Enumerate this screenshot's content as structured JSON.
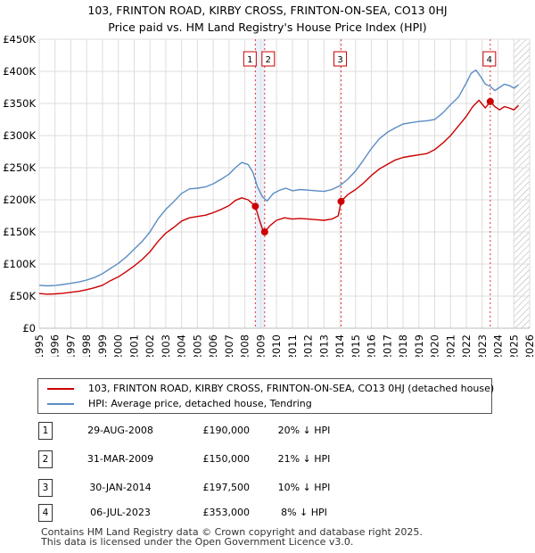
{
  "title_line1": "103, FRINTON ROAD, KIRBY CROSS, FRINTON-ON-SEA, CO13 0HJ",
  "title_line2": "Price paid vs. HM Land Registry's House Price Index (HPI)",
  "chart_data": {
    "type": "line",
    "title": "103, FRINTON ROAD, KIRBY CROSS, FRINTON-ON-SEA, CO13 0HJ — Price paid vs. HM Land Registry's House Price Index (HPI)",
    "xlabel": "",
    "ylabel": "",
    "xlim": [
      1995,
      2026
    ],
    "ylim": [
      0,
      450000
    ],
    "y_ticks": [
      0,
      50000,
      100000,
      150000,
      200000,
      250000,
      300000,
      350000,
      400000,
      450000
    ],
    "y_tick_labels": [
      "£0",
      "£50K",
      "£100K",
      "£150K",
      "£200K",
      "£250K",
      "£300K",
      "£350K",
      "£400K",
      "£450K"
    ],
    "x_ticks": [
      1995,
      1996,
      1997,
      1998,
      1999,
      2000,
      2001,
      2002,
      2003,
      2004,
      2005,
      2006,
      2007,
      2008,
      2009,
      2010,
      2011,
      2012,
      2013,
      2014,
      2015,
      2016,
      2017,
      2018,
      2019,
      2020,
      2021,
      2022,
      2023,
      2024,
      2025,
      2026
    ],
    "grid": true,
    "hatch_after": 2025,
    "series": [
      {
        "name": "HPI: Average price, detached house, Tendring",
        "color": "#5b8cc4",
        "x": [
          1995,
          1995.5,
          1996,
          1996.5,
          1997,
          1997.5,
          1998,
          1998.5,
          1999,
          1999.5,
          2000,
          2000.5,
          2001,
          2001.5,
          2002,
          2002.5,
          2003,
          2003.5,
          2004,
          2004.5,
          2005,
          2005.5,
          2006,
          2006.5,
          2007,
          2007.4,
          2007.8,
          2008.2,
          2008.5,
          2008.8,
          2009.1,
          2009.4,
          2009.8,
          2010.2,
          2010.6,
          2011,
          2011.5,
          2012,
          2012.5,
          2013,
          2013.5,
          2014,
          2014.5,
          2015,
          2015.5,
          2016,
          2016.5,
          2017,
          2017.5,
          2018,
          2018.5,
          2019,
          2019.5,
          2020,
          2020.5,
          2021,
          2021.5,
          2022,
          2022.3,
          2022.6,
          2022.9,
          2023.2,
          2023.5,
          2023.8,
          2024.1,
          2024.4,
          2024.7,
          2025.0,
          2025.3
        ],
        "values": [
          67000,
          66000,
          66500,
          68000,
          70000,
          72000,
          75000,
          79000,
          85000,
          93000,
          101000,
          111000,
          123000,
          135000,
          150000,
          170000,
          185000,
          197000,
          210000,
          217000,
          218000,
          220000,
          225000,
          232000,
          240000,
          250000,
          258000,
          255000,
          243000,
          220000,
          205000,
          198000,
          210000,
          215000,
          218000,
          214000,
          216000,
          215000,
          214000,
          213000,
          216000,
          222000,
          232000,
          245000,
          262000,
          280000,
          295000,
          305000,
          312000,
          318000,
          320000,
          322000,
          323000,
          325000,
          335000,
          348000,
          360000,
          382000,
          397000,
          402000,
          392000,
          380000,
          377000,
          370000,
          375000,
          380000,
          378000,
          374000,
          379000
        ]
      },
      {
        "name": "103, FRINTON ROAD, KIRBY CROSS, FRINTON-ON-SEA, CO13 0HJ (detached house)",
        "color": "#cc0000",
        "x": [
          1995,
          1995.5,
          1996,
          1996.5,
          1997,
          1997.5,
          1998,
          1998.5,
          1999,
          1999.5,
          2000,
          2000.5,
          2001,
          2001.5,
          2002,
          2002.5,
          2003,
          2003.5,
          2004,
          2004.5,
          2005,
          2005.5,
          2006,
          2006.5,
          2007,
          2007.4,
          2007.8,
          2008.2,
          2008.66,
          2008.9,
          2009.1,
          2009.25,
          2009.6,
          2010,
          2010.5,
          2011,
          2011.5,
          2012,
          2012.5,
          2013,
          2013.5,
          2013.9,
          2014.08,
          2014.5,
          2015,
          2015.5,
          2016,
          2016.5,
          2017,
          2017.5,
          2018,
          2018.5,
          2019,
          2019.5,
          2020,
          2020.5,
          2021,
          2021.5,
          2022,
          2022.4,
          2022.8,
          2023.2,
          2023.51,
          2023.8,
          2024.1,
          2024.4,
          2024.7,
          2025.0,
          2025.3
        ],
        "values": [
          54000,
          53000,
          53500,
          54500,
          56000,
          57500,
          60000,
          63000,
          67000,
          74000,
          80000,
          88000,
          97000,
          107000,
          119000,
          135000,
          148000,
          157000,
          167000,
          172000,
          174000,
          176000,
          180000,
          185000,
          191000,
          199000,
          203000,
          200000,
          190000,
          170000,
          155000,
          150000,
          160000,
          168000,
          172000,
          170000,
          171000,
          170000,
          169000,
          168000,
          170000,
          175000,
          197500,
          208000,
          216000,
          226000,
          238000,
          248000,
          255000,
          262000,
          266000,
          268000,
          270000,
          272000,
          278000,
          288000,
          300000,
          315000,
          330000,
          345000,
          355000,
          343000,
          353000,
          345000,
          340000,
          345000,
          343000,
          340000,
          347000
        ]
      }
    ],
    "transactions": [
      {
        "label": "1",
        "x": 2008.66,
        "value": 190000
      },
      {
        "label": "2",
        "x": 2009.25,
        "value": 150000
      },
      {
        "label": "3",
        "x": 2014.08,
        "value": 197500
      },
      {
        "label": "4",
        "x": 2023.51,
        "value": 353000
      }
    ]
  },
  "legend": [
    {
      "label": "103, FRINTON ROAD, KIRBY CROSS, FRINTON-ON-SEA, CO13 0HJ (detached house)",
      "color": "#cc0000"
    },
    {
      "label": "HPI: Average price, detached house, Tendring",
      "color": "#5b8cc4"
    }
  ],
  "table": [
    {
      "num": "1",
      "date": "29-AUG-2008",
      "price": "£190,000",
      "hpi": "20% ↓ HPI"
    },
    {
      "num": "2",
      "date": "31-MAR-2009",
      "price": "£150,000",
      "hpi": "21% ↓ HPI"
    },
    {
      "num": "3",
      "date": "30-JAN-2014",
      "price": "£197,500",
      "hpi": "10% ↓ HPI"
    },
    {
      "num": "4",
      "date": "06-JUL-2023",
      "price": "£353,000",
      "hpi": "8% ↓ HPI"
    }
  ],
  "footer_line1": "Contains HM Land Registry data © Crown copyright and database right 2025.",
  "footer_line2": "This data is licensed under the Open Government Licence v3.0."
}
